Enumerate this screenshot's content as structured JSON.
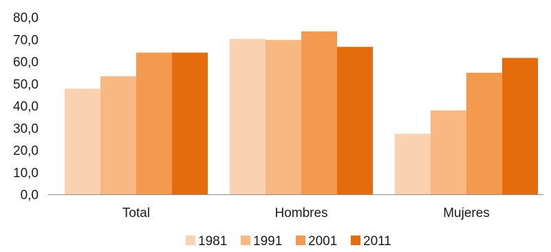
{
  "chart_data": {
    "type": "bar",
    "categories": [
      "Total",
      "Hombres",
      "Mujeres"
    ],
    "series": [
      {
        "name": "1981",
        "color": "#FBD2B1",
        "values": [
          47.7,
          70.2,
          27.3
        ]
      },
      {
        "name": "1991",
        "color": "#F8B882",
        "values": [
          53.3,
          69.7,
          37.9
        ]
      },
      {
        "name": "2001",
        "color": "#F49A4E",
        "values": [
          64.0,
          73.6,
          54.9
        ]
      },
      {
        "name": "2011",
        "color": "#E46C0A",
        "values": [
          64.0,
          66.6,
          61.6
        ]
      }
    ],
    "yticks": [
      "0,0",
      "10,0",
      "20,0",
      "30,0",
      "40,0",
      "50,0",
      "60,0",
      "70,0",
      "80,0"
    ],
    "ylim": [
      0,
      80
    ],
    "legend_position": "bottom",
    "grid": false
  }
}
